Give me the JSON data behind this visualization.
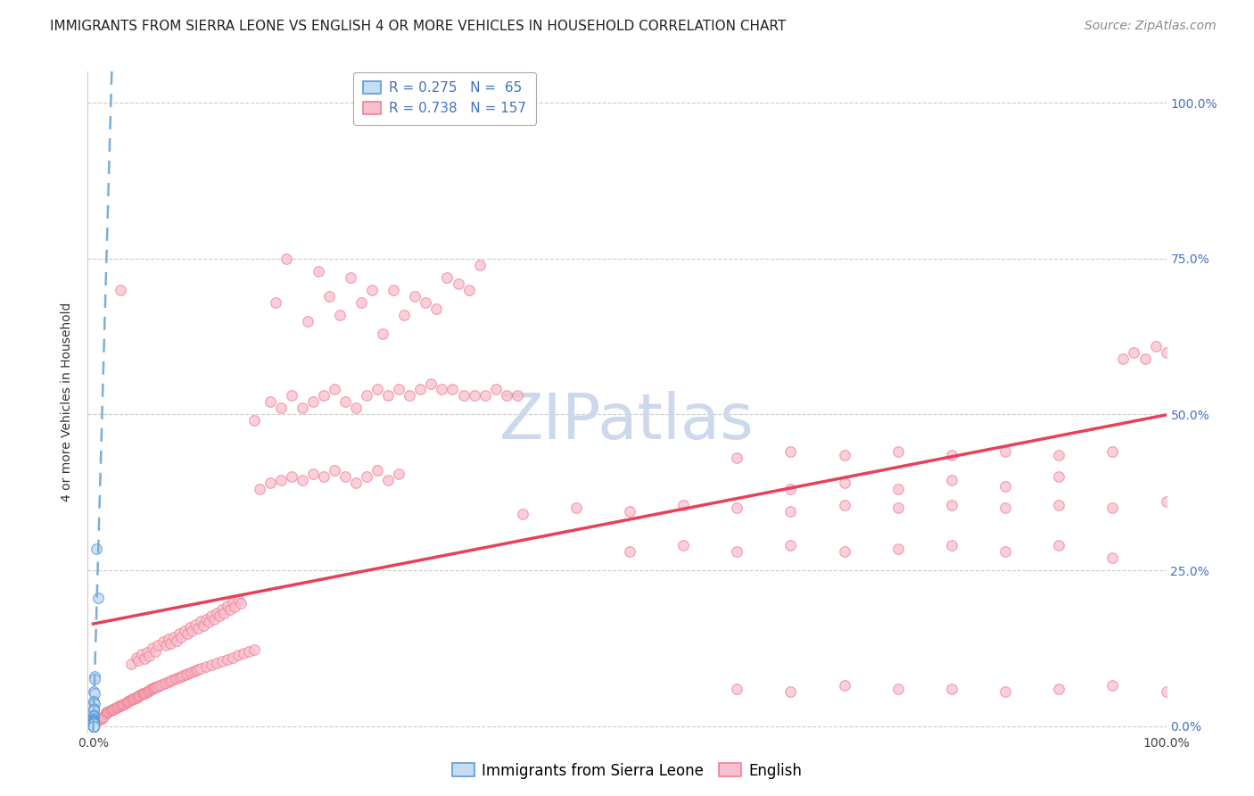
{
  "title": "IMMIGRANTS FROM SIERRA LEONE VS ENGLISH 4 OR MORE VEHICLES IN HOUSEHOLD CORRELATION CHART",
  "source": "Source: ZipAtlas.com",
  "ylabel": "4 or more Vehicles in Household",
  "legend_label_1": "Immigrants from Sierra Leone",
  "legend_label_2": "English",
  "R1": 0.275,
  "N1": 65,
  "R2": 0.738,
  "N2": 157,
  "color_blue": "#a8c8f0",
  "color_blue_fill": "#c5dcf5",
  "color_blue_edge": "#5b9bd5",
  "color_pink": "#f4a0b8",
  "color_pink_fill": "#f8c0d0",
  "color_pink_edge": "#f08090",
  "color_blue_line": "#7bafd4",
  "color_pink_line": "#e8405a",
  "color_blue_text": "#4472c4",
  "color_pink_text": "#e8405a",
  "watermark_color": "#ccd8ec",
  "scatter_blue": [
    [
      0.003,
      0.285
    ],
    [
      0.0045,
      0.205
    ],
    [
      0.001,
      0.08
    ],
    [
      0.0015,
      0.075
    ],
    [
      0.0008,
      0.055
    ],
    [
      0.0012,
      0.052
    ],
    [
      0.0005,
      0.04
    ],
    [
      0.0007,
      0.038
    ],
    [
      0.001,
      0.036
    ],
    [
      0.0004,
      0.028
    ],
    [
      0.0006,
      0.026
    ],
    [
      0.0008,
      0.025
    ],
    [
      0.0003,
      0.018
    ],
    [
      0.0005,
      0.017
    ],
    [
      0.0007,
      0.016
    ],
    [
      0.0006,
      0.015
    ],
    [
      0.0004,
      0.012
    ],
    [
      0.0005,
      0.011
    ],
    [
      0.0003,
      0.01
    ],
    [
      0.0006,
      0.01
    ],
    [
      0.0004,
      0.008
    ],
    [
      0.0003,
      0.008
    ],
    [
      0.0002,
      0.006
    ],
    [
      0.0003,
      0.006
    ],
    [
      0.0004,
      0.006
    ],
    [
      0.0002,
      0.005
    ],
    [
      0.0003,
      0.005
    ],
    [
      0.0002,
      0.005
    ],
    [
      0.0003,
      0.004
    ],
    [
      0.0002,
      0.004
    ],
    [
      0.0002,
      0.003
    ],
    [
      0.0003,
      0.003
    ],
    [
      0.0002,
      0.003
    ],
    [
      0.0001,
      0.003
    ],
    [
      0.0002,
      0.003
    ],
    [
      0.0002,
      0.002
    ],
    [
      0.0001,
      0.002
    ],
    [
      0.0002,
      0.002
    ],
    [
      0.0001,
      0.002
    ],
    [
      0.0002,
      0.002
    ],
    [
      0.0001,
      0.001
    ],
    [
      0.0002,
      0.001
    ],
    [
      0.0001,
      0.001
    ],
    [
      0.0001,
      0.001
    ],
    [
      0.0002,
      0.001
    ],
    [
      0.0001,
      0.0
    ],
    [
      0.0002,
      0.0
    ],
    [
      0.0001,
      0.0
    ],
    [
      0.0001,
      0.0
    ],
    [
      0.0002,
      0.0
    ],
    [
      0.0001,
      0.0
    ],
    [
      0.0001,
      0.0
    ],
    [
      0.0002,
      0.0
    ],
    [
      0.0001,
      0.0
    ],
    [
      0.0001,
      0.001
    ],
    [
      0.0002,
      0.001
    ],
    [
      0.0001,
      0.003
    ],
    [
      0.0002,
      0.003
    ],
    [
      0.0001,
      0.002
    ],
    [
      0.0002,
      0.002
    ],
    [
      0.0001,
      0.001
    ],
    [
      0.0001,
      0.004
    ],
    [
      0.0003,
      0.0
    ],
    [
      0.0002,
      0.0
    ],
    [
      0.0001,
      0.0
    ]
  ],
  "scatter_pink": [
    [
      0.001,
      0.005
    ],
    [
      0.002,
      0.007
    ],
    [
      0.003,
      0.008
    ],
    [
      0.004,
      0.009
    ],
    [
      0.005,
      0.01
    ],
    [
      0.006,
      0.011
    ],
    [
      0.007,
      0.012
    ],
    [
      0.008,
      0.013
    ],
    [
      0.009,
      0.014
    ],
    [
      0.01,
      0.015
    ],
    [
      0.011,
      0.02
    ],
    [
      0.012,
      0.022
    ],
    [
      0.013,
      0.022
    ],
    [
      0.014,
      0.023
    ],
    [
      0.015,
      0.024
    ],
    [
      0.016,
      0.025
    ],
    [
      0.017,
      0.025
    ],
    [
      0.018,
      0.026
    ],
    [
      0.019,
      0.027
    ],
    [
      0.02,
      0.028
    ],
    [
      0.021,
      0.029
    ],
    [
      0.022,
      0.03
    ],
    [
      0.023,
      0.031
    ],
    [
      0.024,
      0.032
    ],
    [
      0.025,
      0.033
    ],
    [
      0.026,
      0.034
    ],
    [
      0.027,
      0.034
    ],
    [
      0.028,
      0.035
    ],
    [
      0.029,
      0.036
    ],
    [
      0.03,
      0.037
    ],
    [
      0.031,
      0.038
    ],
    [
      0.032,
      0.039
    ],
    [
      0.033,
      0.04
    ],
    [
      0.034,
      0.041
    ],
    [
      0.035,
      0.042
    ],
    [
      0.036,
      0.043
    ],
    [
      0.037,
      0.044
    ],
    [
      0.038,
      0.044
    ],
    [
      0.039,
      0.045
    ],
    [
      0.04,
      0.046
    ],
    [
      0.041,
      0.047
    ],
    [
      0.042,
      0.048
    ],
    [
      0.043,
      0.049
    ],
    [
      0.044,
      0.05
    ],
    [
      0.045,
      0.051
    ],
    [
      0.046,
      0.052
    ],
    [
      0.047,
      0.052
    ],
    [
      0.048,
      0.053
    ],
    [
      0.049,
      0.054
    ],
    [
      0.05,
      0.055
    ],
    [
      0.051,
      0.056
    ],
    [
      0.052,
      0.057
    ],
    [
      0.053,
      0.058
    ],
    [
      0.054,
      0.059
    ],
    [
      0.055,
      0.06
    ],
    [
      0.056,
      0.061
    ],
    [
      0.057,
      0.062
    ],
    [
      0.058,
      0.063
    ],
    [
      0.059,
      0.063
    ],
    [
      0.06,
      0.064
    ],
    [
      0.062,
      0.065
    ],
    [
      0.064,
      0.067
    ],
    [
      0.066,
      0.068
    ],
    [
      0.068,
      0.07
    ],
    [
      0.07,
      0.071
    ],
    [
      0.072,
      0.073
    ],
    [
      0.074,
      0.074
    ],
    [
      0.076,
      0.075
    ],
    [
      0.078,
      0.077
    ],
    [
      0.08,
      0.078
    ],
    [
      0.082,
      0.08
    ],
    [
      0.084,
      0.081
    ],
    [
      0.086,
      0.082
    ],
    [
      0.088,
      0.084
    ],
    [
      0.09,
      0.085
    ],
    [
      0.092,
      0.087
    ],
    [
      0.094,
      0.088
    ],
    [
      0.096,
      0.09
    ],
    [
      0.098,
      0.091
    ],
    [
      0.1,
      0.092
    ],
    [
      0.105,
      0.095
    ],
    [
      0.11,
      0.098
    ],
    [
      0.115,
      0.101
    ],
    [
      0.12,
      0.104
    ],
    [
      0.125,
      0.107
    ],
    [
      0.13,
      0.11
    ],
    [
      0.135,
      0.114
    ],
    [
      0.14,
      0.117
    ],
    [
      0.145,
      0.12
    ],
    [
      0.15,
      0.123
    ],
    [
      0.035,
      0.1
    ],
    [
      0.04,
      0.11
    ],
    [
      0.042,
      0.105
    ],
    [
      0.045,
      0.115
    ],
    [
      0.048,
      0.108
    ],
    [
      0.05,
      0.118
    ],
    [
      0.052,
      0.112
    ],
    [
      0.055,
      0.125
    ],
    [
      0.058,
      0.12
    ],
    [
      0.06,
      0.13
    ],
    [
      0.065,
      0.135
    ],
    [
      0.068,
      0.13
    ],
    [
      0.07,
      0.14
    ],
    [
      0.072,
      0.133
    ],
    [
      0.075,
      0.143
    ],
    [
      0.078,
      0.137
    ],
    [
      0.08,
      0.148
    ],
    [
      0.082,
      0.143
    ],
    [
      0.085,
      0.153
    ],
    [
      0.088,
      0.148
    ],
    [
      0.09,
      0.158
    ],
    [
      0.092,
      0.152
    ],
    [
      0.095,
      0.163
    ],
    [
      0.098,
      0.157
    ],
    [
      0.1,
      0.168
    ],
    [
      0.103,
      0.162
    ],
    [
      0.105,
      0.172
    ],
    [
      0.108,
      0.167
    ],
    [
      0.11,
      0.177
    ],
    [
      0.113,
      0.172
    ],
    [
      0.115,
      0.182
    ],
    [
      0.118,
      0.177
    ],
    [
      0.12,
      0.187
    ],
    [
      0.122,
      0.182
    ],
    [
      0.125,
      0.193
    ],
    [
      0.128,
      0.187
    ],
    [
      0.13,
      0.198
    ],
    [
      0.132,
      0.192
    ],
    [
      0.135,
      0.203
    ],
    [
      0.138,
      0.197
    ],
    [
      0.025,
      0.7
    ],
    [
      0.17,
      0.68
    ],
    [
      0.2,
      0.65
    ],
    [
      0.23,
      0.66
    ],
    [
      0.25,
      0.68
    ],
    [
      0.27,
      0.63
    ],
    [
      0.29,
      0.66
    ],
    [
      0.3,
      0.69
    ],
    [
      0.31,
      0.68
    ],
    [
      0.32,
      0.67
    ],
    [
      0.18,
      0.75
    ],
    [
      0.21,
      0.73
    ],
    [
      0.22,
      0.69
    ],
    [
      0.24,
      0.72
    ],
    [
      0.26,
      0.7
    ],
    [
      0.28,
      0.7
    ],
    [
      0.33,
      0.72
    ],
    [
      0.34,
      0.71
    ],
    [
      0.35,
      0.7
    ],
    [
      0.36,
      0.74
    ],
    [
      0.15,
      0.49
    ],
    [
      0.165,
      0.52
    ],
    [
      0.175,
      0.51
    ],
    [
      0.185,
      0.53
    ],
    [
      0.195,
      0.51
    ],
    [
      0.205,
      0.52
    ],
    [
      0.215,
      0.53
    ],
    [
      0.225,
      0.54
    ],
    [
      0.235,
      0.52
    ],
    [
      0.245,
      0.51
    ],
    [
      0.255,
      0.53
    ],
    [
      0.265,
      0.54
    ],
    [
      0.275,
      0.53
    ],
    [
      0.285,
      0.54
    ],
    [
      0.295,
      0.53
    ],
    [
      0.305,
      0.54
    ],
    [
      0.315,
      0.55
    ],
    [
      0.325,
      0.54
    ],
    [
      0.335,
      0.54
    ],
    [
      0.345,
      0.53
    ],
    [
      0.355,
      0.53
    ],
    [
      0.365,
      0.53
    ],
    [
      0.375,
      0.54
    ],
    [
      0.385,
      0.53
    ],
    [
      0.395,
      0.53
    ],
    [
      0.96,
      0.59
    ],
    [
      0.97,
      0.6
    ],
    [
      0.98,
      0.59
    ],
    [
      0.99,
      0.61
    ],
    [
      1.0,
      0.6
    ],
    [
      0.155,
      0.38
    ],
    [
      0.165,
      0.39
    ],
    [
      0.175,
      0.395
    ],
    [
      0.185,
      0.4
    ],
    [
      0.195,
      0.395
    ],
    [
      0.205,
      0.405
    ],
    [
      0.215,
      0.4
    ],
    [
      0.225,
      0.41
    ],
    [
      0.235,
      0.4
    ],
    [
      0.245,
      0.39
    ],
    [
      0.255,
      0.4
    ],
    [
      0.265,
      0.41
    ],
    [
      0.275,
      0.395
    ],
    [
      0.285,
      0.405
    ],
    [
      0.65,
      0.38
    ],
    [
      0.7,
      0.39
    ],
    [
      0.75,
      0.38
    ],
    [
      0.8,
      0.395
    ],
    [
      0.85,
      0.385
    ],
    [
      0.9,
      0.4
    ],
    [
      0.5,
      0.28
    ],
    [
      0.55,
      0.29
    ],
    [
      0.6,
      0.28
    ],
    [
      0.65,
      0.29
    ],
    [
      0.7,
      0.28
    ],
    [
      0.75,
      0.285
    ],
    [
      0.8,
      0.29
    ],
    [
      0.85,
      0.28
    ],
    [
      0.9,
      0.29
    ],
    [
      0.95,
      0.27
    ],
    [
      0.4,
      0.34
    ],
    [
      0.45,
      0.35
    ],
    [
      0.5,
      0.345
    ],
    [
      0.55,
      0.355
    ],
    [
      0.6,
      0.35
    ],
    [
      0.65,
      0.345
    ],
    [
      0.7,
      0.355
    ],
    [
      0.75,
      0.35
    ],
    [
      0.8,
      0.355
    ],
    [
      0.85,
      0.35
    ],
    [
      0.9,
      0.355
    ],
    [
      0.95,
      0.35
    ],
    [
      1.0,
      0.36
    ],
    [
      0.6,
      0.43
    ],
    [
      0.65,
      0.44
    ],
    [
      0.7,
      0.435
    ],
    [
      0.75,
      0.44
    ],
    [
      0.8,
      0.435
    ],
    [
      0.85,
      0.44
    ],
    [
      0.9,
      0.435
    ],
    [
      0.95,
      0.44
    ],
    [
      0.6,
      0.06
    ],
    [
      0.65,
      0.055
    ],
    [
      0.7,
      0.065
    ],
    [
      0.75,
      0.06
    ],
    [
      0.8,
      0.06
    ],
    [
      0.85,
      0.055
    ],
    [
      0.9,
      0.06
    ],
    [
      0.95,
      0.065
    ],
    [
      1.0,
      0.055
    ]
  ],
  "title_fontsize": 11,
  "source_fontsize": 10,
  "axis_label_fontsize": 10,
  "tick_fontsize": 10,
  "legend_fontsize": 11,
  "watermark_fontsize": 52,
  "xlim": [
    0.0,
    1.0
  ],
  "ylim": [
    0.0,
    1.05
  ],
  "x_ticks": [
    0.0,
    0.25,
    0.5,
    0.75,
    1.0
  ],
  "y_ticks": [
    0.0,
    0.25,
    0.5,
    0.75,
    1.0
  ],
  "x_tick_labels_show": [
    "0.0%",
    "",
    "",
    "",
    "100.0%"
  ],
  "y_tick_labels_show": [
    "0.0%",
    "25.0%",
    "50.0%",
    "75.0%",
    "100.0%"
  ]
}
